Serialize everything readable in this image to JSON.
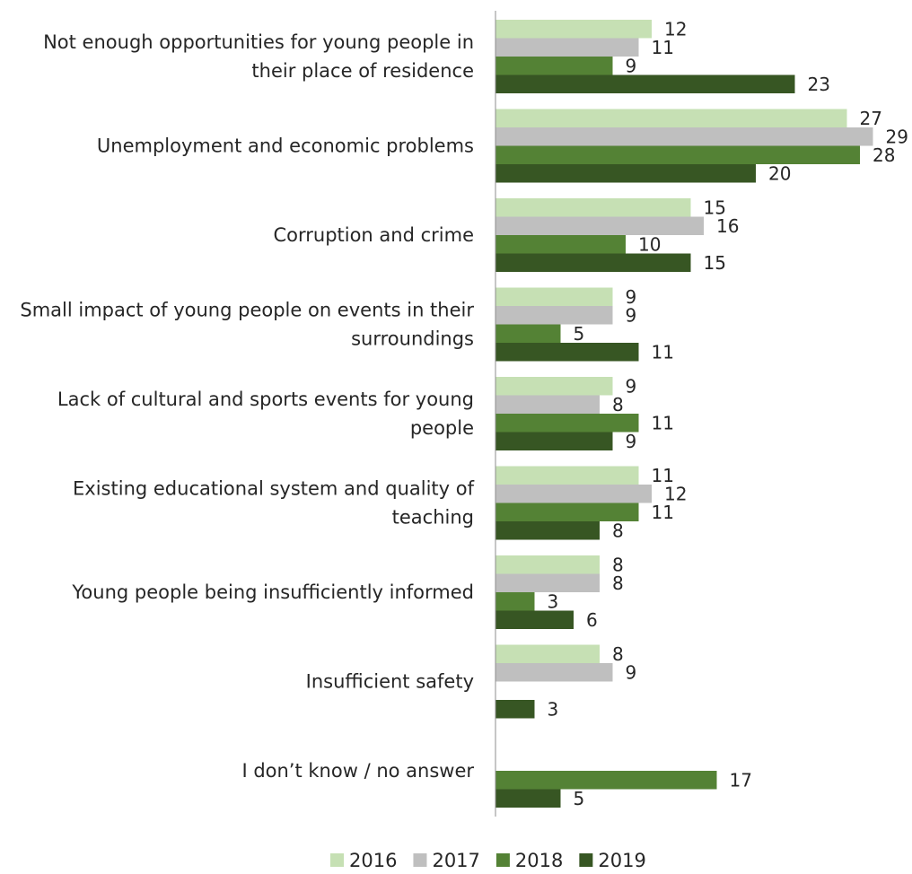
{
  "chart_data": {
    "type": "bar",
    "orientation": "horizontal",
    "categories": [
      "Not enough opportunities for young people in their place of residence",
      "Unemployment and economic problems",
      "Corruption and crime",
      "Small impact of young people on events in their surroundings",
      "Lack of cultural and sports events for young people",
      "Existing educational system and quality of teaching",
      "Young people being insufficiently informed",
      "Insufficient safety",
      "I don’t know / no answer"
    ],
    "series": [
      {
        "name": "2016",
        "color": "#c6e0b4",
        "values": [
          12,
          27,
          15,
          9,
          9,
          11,
          8,
          8,
          null
        ]
      },
      {
        "name": "2017",
        "color": "#bfbfbf",
        "values": [
          11,
          29,
          16,
          9,
          8,
          12,
          8,
          9,
          null
        ]
      },
      {
        "name": "2018",
        "color": "#548235",
        "values": [
          9,
          28,
          10,
          5,
          11,
          11,
          3,
          null,
          17
        ]
      },
      {
        "name": "2019",
        "color": "#375623",
        "values": [
          23,
          20,
          15,
          11,
          9,
          8,
          6,
          3,
          5
        ]
      }
    ],
    "xlim": [
      0,
      30
    ],
    "grid": false,
    "legend_position": "bottom"
  }
}
